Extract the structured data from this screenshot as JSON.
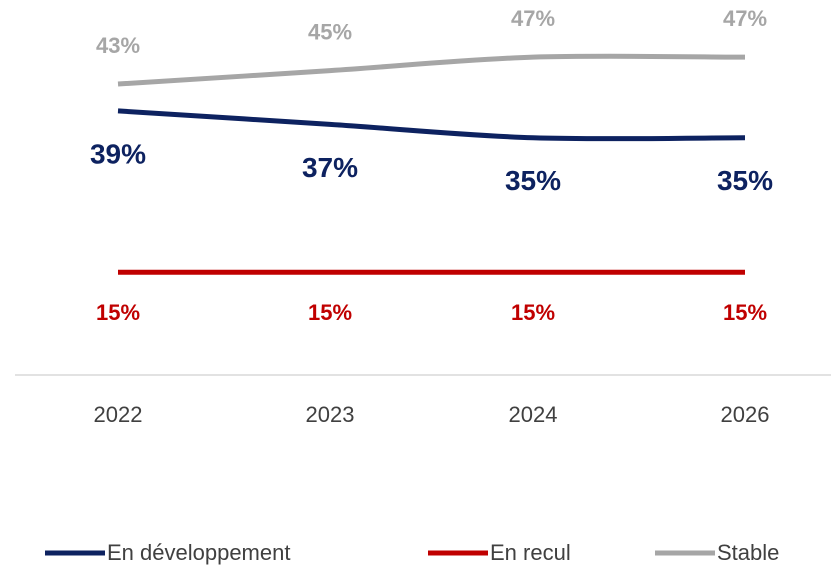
{
  "chart_data": {
    "type": "line",
    "categories": [
      "2022",
      "2023",
      "2024",
      "2026"
    ],
    "ylim": [
      0,
      55
    ],
    "series": [
      {
        "name": "En développement",
        "color": "#0d2260",
        "values": [
          39,
          37,
          35,
          35
        ],
        "value_labels": [
          "39%",
          "37%",
          "35%",
          "35%"
        ]
      },
      {
        "name": "En recul",
        "color": "#c00000",
        "values": [
          15,
          15,
          15,
          15
        ],
        "value_labels": [
          "15%",
          "15%",
          "15%",
          "15%"
        ]
      },
      {
        "name": "Stable",
        "color": "#a6a6a6",
        "values": [
          43,
          45,
          47,
          47
        ],
        "value_labels": [
          "43%",
          "45%",
          "47%",
          "47%"
        ]
      }
    ]
  }
}
